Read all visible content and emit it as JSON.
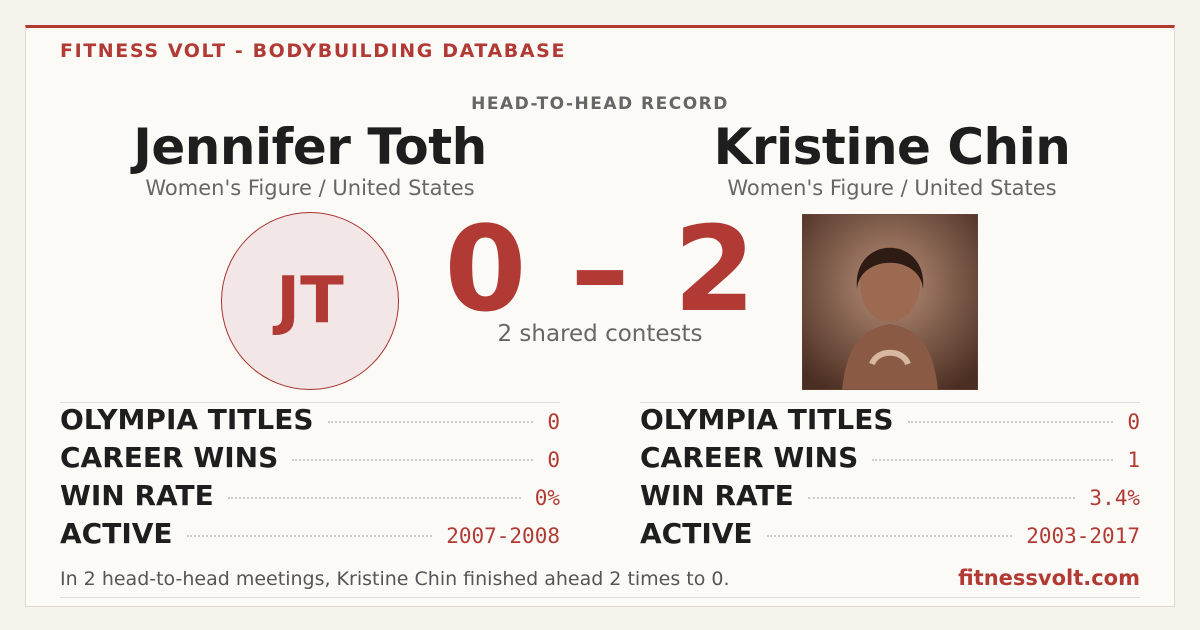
{
  "header": {
    "brand": "FITNESS VOLT - BODYBUILDING DATABASE",
    "label": "HEAD-TO-HEAD RECORD"
  },
  "athletes": [
    {
      "name": "Jennifer Toth",
      "division": "Women's Figure / United States",
      "initials": "JT"
    },
    {
      "name": "Kristine Chin",
      "division": "Women's Figure / United States"
    }
  ],
  "score": {
    "left": "0",
    "separator": "–",
    "right": "2",
    "caption": "2 shared contests"
  },
  "stats": [
    [
      [
        "OLYMPIA TITLES",
        "0"
      ],
      [
        "CAREER WINS",
        "0"
      ],
      [
        "WIN RATE",
        "0%"
      ],
      [
        "ACTIVE",
        "2007-2008"
      ]
    ],
    [
      [
        "OLYMPIA TITLES",
        "0"
      ],
      [
        "CAREER WINS",
        "1"
      ],
      [
        "WIN RATE",
        "3.4%"
      ],
      [
        "ACTIVE",
        "2003-2017"
      ]
    ]
  ],
  "footer": {
    "summary": "In 2 head-to-head meetings, Kristine Chin finished ahead 2 times to 0.",
    "site": "fitnessvolt.com"
  }
}
